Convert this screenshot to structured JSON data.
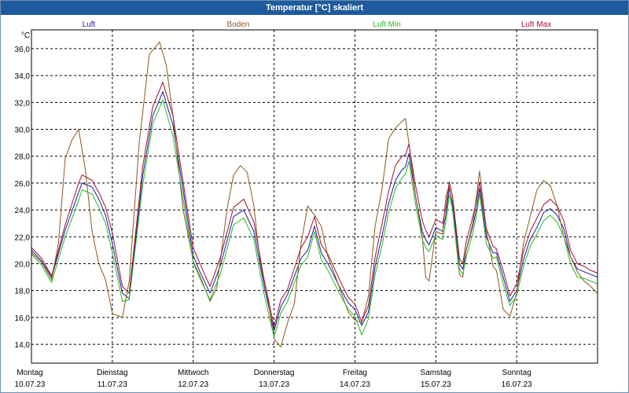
{
  "window": {
    "title": "Temperatur [°C] skaliert"
  },
  "chart_data": {
    "type": "line",
    "title": "Temperatur [°C] skaliert",
    "ylabel": "°C",
    "ylim": [
      12.6,
      37.4
    ],
    "xlim": [
      0,
      168
    ],
    "grid": true,
    "legend_position": "top",
    "yticks": [
      "14,0",
      "16,0",
      "18,0",
      "20,0",
      "22,0",
      "24,0",
      "26,0",
      "28,0",
      "30,0",
      "32,0",
      "34,0",
      "36,0"
    ],
    "ytick_values": [
      14,
      16,
      18,
      20,
      22,
      24,
      26,
      28,
      30,
      32,
      34,
      36
    ],
    "xticks": [
      {
        "day": "Montag",
        "date": "10.07.23",
        "hour": 0
      },
      {
        "day": "Dienstag",
        "date": "11.07.23",
        "hour": 24
      },
      {
        "day": "Mittwoch",
        "date": "12.07.23",
        "hour": 48
      },
      {
        "day": "Donnerstag",
        "date": "13.07.23",
        "hour": 72
      },
      {
        "day": "Freitag",
        "date": "14.07.23",
        "hour": 96
      },
      {
        "day": "Samstag",
        "date": "15.07.23",
        "hour": 120
      },
      {
        "day": "Sonntag",
        "date": "16.07.23",
        "hour": 144
      }
    ],
    "series": [
      {
        "name": "Luft",
        "color": "#1a1aa0",
        "x": [
          0,
          3,
          6,
          10,
          14,
          15,
          18,
          20,
          22,
          24,
          27,
          29,
          33,
          36,
          39,
          42,
          45,
          48,
          50,
          53,
          56,
          60,
          63,
          66,
          69,
          72,
          74,
          76,
          80,
          82,
          84,
          86,
          88,
          90,
          92,
          94,
          96,
          98,
          100,
          102,
          104,
          106,
          108,
          110,
          111,
          112,
          114,
          116,
          117,
          118,
          120,
          122,
          123,
          124,
          125,
          127,
          128,
          129,
          131,
          132,
          133,
          135,
          137,
          138,
          140,
          142,
          144,
          146,
          148,
          150,
          152,
          154,
          156,
          158,
          160,
          162,
          164,
          166,
          168
        ],
        "y": [
          21.0,
          20.2,
          19.0,
          22.5,
          25.3,
          26.0,
          25.7,
          24.8,
          23.6,
          21.5,
          17.8,
          17.4,
          26.5,
          31.0,
          32.8,
          30.3,
          25.5,
          20.6,
          19.4,
          17.8,
          19.8,
          23.5,
          24.0,
          22.4,
          18.4,
          15.0,
          16.8,
          17.7,
          20.4,
          21.0,
          22.8,
          20.8,
          20.0,
          19.0,
          18.0,
          17.1,
          16.6,
          15.4,
          16.4,
          19.8,
          22.0,
          24.5,
          26.2,
          27.0,
          27.2,
          28.2,
          25.0,
          22.4,
          21.8,
          21.4,
          22.7,
          22.4,
          23.6,
          25.6,
          24.5,
          20.0,
          19.6,
          21.0,
          22.8,
          24.0,
          25.6,
          22.0,
          20.8,
          20.8,
          19.0,
          17.2,
          18.0,
          20.3,
          21.8,
          22.7,
          23.8,
          24.1,
          23.6,
          22.6,
          20.5,
          19.6,
          19.4,
          19.2,
          19.0
        ]
      },
      {
        "name": "Boden",
        "color": "#8a5a1e",
        "x": [
          0,
          3,
          6,
          8,
          10,
          12,
          14,
          16,
          18,
          20,
          22,
          24,
          27,
          29,
          32,
          35,
          38,
          40,
          42,
          45,
          48,
          50,
          53,
          55,
          58,
          60,
          62,
          64,
          66,
          67,
          68,
          70,
          72,
          74,
          76,
          78,
          80,
          82,
          84,
          86,
          88,
          90,
          92,
          94,
          96,
          98,
          100,
          102,
          104,
          106,
          108,
          110,
          111,
          112,
          114,
          116,
          117,
          118,
          120,
          122,
          123,
          124,
          125,
          127,
          128,
          129,
          131,
          132,
          133,
          135,
          137,
          138,
          140,
          142,
          144,
          146,
          148,
          150,
          152,
          154,
          156,
          158,
          160,
          162,
          164,
          166,
          168
        ],
        "y": [
          20.8,
          20.1,
          18.8,
          21.5,
          27.8,
          29.2,
          30.0,
          27.0,
          22.4,
          20.0,
          18.8,
          16.3,
          16.0,
          18.7,
          29.0,
          35.6,
          36.5,
          34.8,
          31.0,
          24.0,
          20.2,
          19.1,
          17.2,
          18.2,
          24.0,
          26.6,
          27.3,
          26.8,
          24.3,
          22.0,
          20.0,
          17.6,
          14.4,
          13.8,
          15.6,
          17.0,
          21.5,
          24.3,
          23.6,
          22.8,
          20.5,
          19.2,
          17.8,
          16.4,
          15.8,
          15.6,
          17.6,
          22.8,
          25.5,
          29.3,
          30.1,
          30.6,
          30.8,
          29.0,
          25.0,
          22.0,
          19.0,
          18.7,
          22.4,
          22.2,
          25.0,
          25.8,
          24.0,
          19.2,
          19.0,
          21.0,
          23.0,
          24.9,
          26.9,
          22.5,
          19.8,
          19.5,
          16.6,
          16.1,
          17.8,
          21.5,
          23.5,
          25.5,
          26.2,
          25.8,
          24.3,
          22.0,
          20.5,
          19.4,
          18.7,
          18.3,
          17.8
        ]
      },
      {
        "name": "Luft Min",
        "color": "#22bb22",
        "x": [
          0,
          3,
          6,
          10,
          14,
          15,
          18,
          20,
          22,
          24,
          27,
          29,
          33,
          36,
          39,
          42,
          45,
          48,
          50,
          53,
          56,
          60,
          63,
          66,
          69,
          72,
          74,
          76,
          80,
          82,
          84,
          86,
          88,
          90,
          92,
          94,
          96,
          98,
          100,
          102,
          104,
          106,
          108,
          110,
          111,
          112,
          114,
          116,
          117,
          118,
          120,
          122,
          123,
          124,
          125,
          127,
          128,
          129,
          131,
          132,
          133,
          135,
          137,
          138,
          140,
          142,
          144,
          146,
          148,
          150,
          152,
          154,
          156,
          158,
          160,
          162,
          164,
          166,
          168
        ],
        "y": [
          20.7,
          19.9,
          18.6,
          22.0,
          24.7,
          25.5,
          25.2,
          24.2,
          23.0,
          20.8,
          17.2,
          17.3,
          25.8,
          30.4,
          32.2,
          29.5,
          24.8,
          20.1,
          18.9,
          17.3,
          19.2,
          22.9,
          23.4,
          21.8,
          17.8,
          14.5,
          16.3,
          17.2,
          19.9,
          20.5,
          22.4,
          20.3,
          19.5,
          18.5,
          17.5,
          16.6,
          16.1,
          14.7,
          15.9,
          19.2,
          21.3,
          23.8,
          25.6,
          26.4,
          26.7,
          27.6,
          24.4,
          21.8,
          21.2,
          20.9,
          22.1,
          21.8,
          23.1,
          25.1,
          24.0,
          19.6,
          19.2,
          20.5,
          22.3,
          23.5,
          25.2,
          21.5,
          20.4,
          20.5,
          18.5,
          16.9,
          17.6,
          19.8,
          21.3,
          22.2,
          23.2,
          23.6,
          23.1,
          22.0,
          20.0,
          19.0,
          18.9,
          18.7,
          18.5
        ]
      },
      {
        "name": "Luft Max",
        "color": "#a0102a",
        "x": [
          0,
          3,
          6,
          10,
          14,
          15,
          18,
          20,
          22,
          24,
          27,
          29,
          33,
          36,
          39,
          42,
          45,
          48,
          50,
          53,
          56,
          60,
          63,
          66,
          69,
          72,
          74,
          76,
          80,
          82,
          84,
          86,
          88,
          90,
          92,
          94,
          96,
          98,
          100,
          102,
          104,
          106,
          108,
          110,
          111,
          112,
          114,
          116,
          117,
          118,
          120,
          122,
          123,
          124,
          125,
          127,
          128,
          129,
          131,
          132,
          133,
          135,
          137,
          138,
          140,
          142,
          144,
          146,
          148,
          150,
          152,
          154,
          156,
          158,
          160,
          162,
          164,
          166,
          168
        ],
        "y": [
          21.2,
          20.4,
          19.1,
          22.9,
          26.0,
          26.6,
          26.2,
          25.3,
          24.2,
          22.3,
          18.3,
          17.8,
          27.2,
          31.7,
          33.5,
          31.0,
          26.1,
          21.2,
          20.0,
          18.3,
          20.4,
          24.2,
          24.8,
          23.1,
          18.9,
          15.3,
          17.3,
          18.1,
          21.2,
          22.0,
          23.5,
          21.4,
          20.7,
          19.6,
          18.5,
          17.5,
          17.0,
          15.7,
          16.9,
          20.5,
          22.9,
          25.4,
          27.3,
          28.0,
          28.1,
          28.9,
          25.8,
          23.2,
          22.5,
          22.0,
          23.3,
          23.0,
          24.2,
          26.1,
          25.0,
          20.4,
          20.0,
          21.6,
          23.5,
          24.6,
          26.1,
          22.6,
          21.3,
          21.1,
          19.5,
          17.6,
          18.5,
          20.9,
          22.4,
          23.4,
          24.4,
          24.8,
          24.3,
          23.2,
          21.0,
          20.0,
          19.8,
          19.5,
          19.3
        ]
      }
    ]
  }
}
